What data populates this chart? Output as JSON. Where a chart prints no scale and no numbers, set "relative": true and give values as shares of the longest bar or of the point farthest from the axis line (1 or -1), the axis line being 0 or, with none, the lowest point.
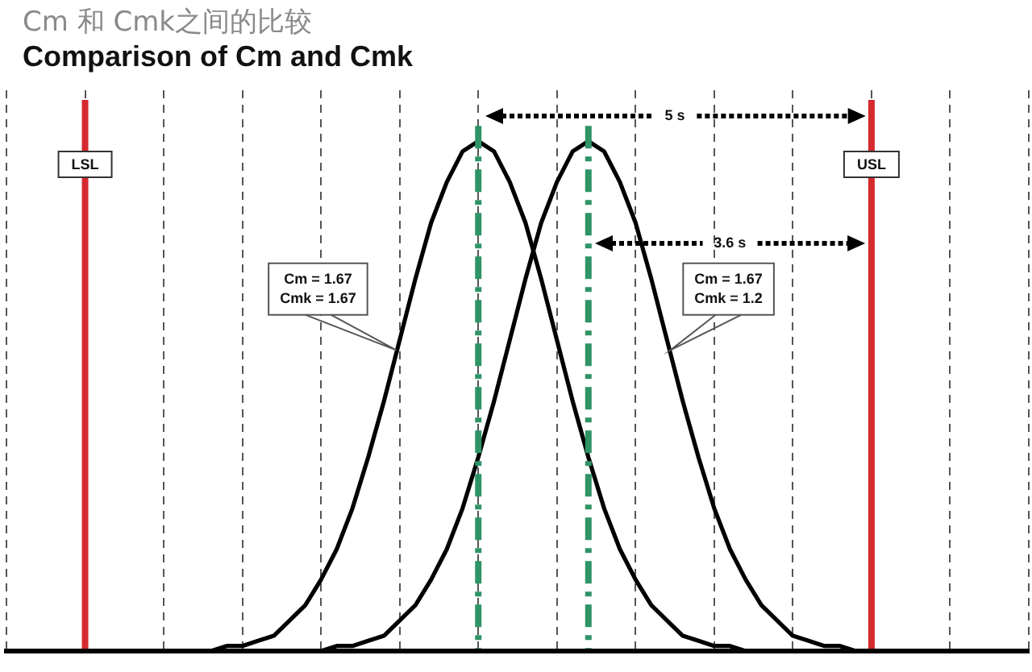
{
  "chart_data": {
    "type": "line",
    "title": "Cm 和 Cmk之间的比较",
    "subtitle": "Comparison of Cm and Cmk",
    "relative": true,
    "categories": [
      null,
      null,
      null,
      null,
      null,
      null,
      null,
      null,
      null,
      null,
      null,
      null,
      null,
      null,
      null,
      null,
      null,
      null,
      null,
      null,
      null,
      null,
      null,
      null,
      null,
      null,
      null,
      null,
      null,
      null,
      null,
      null,
      null,
      null,
      null,
      null,
      null,
      null,
      null,
      null,
      null,
      null,
      null,
      null,
      null,
      null,
      null,
      null,
      null,
      null,
      null,
      null,
      null,
      null,
      null,
      null,
      null,
      null,
      null,
      null,
      null,
      null,
      null,
      null,
      null,
      null
    ],
    "series": [
      {
        "color": "#000000",
        "values": [
          0,
          0,
          0,
          0,
          0,
          0,
          0,
          0,
          0,
          0,
          0,
          0,
          0,
          0,
          0.01,
          0.01,
          0.02,
          0.03,
          0.06,
          0.09,
          0.14,
          0.2,
          0.28,
          0.38,
          0.49,
          0.61,
          0.73,
          0.84,
          0.92,
          0.98,
          1,
          0.98,
          0.92,
          0.84,
          0.73,
          0.61,
          0.49,
          0.38,
          0.28,
          0.2,
          0.14,
          0.09,
          0.06,
          0.03,
          0.02,
          0.01,
          0.01,
          0,
          0,
          0,
          0,
          0,
          0,
          0,
          0,
          0,
          0,
          0,
          0,
          0,
          0,
          0,
          0,
          0,
          0,
          0
        ]
      },
      {
        "color": "#000000",
        "values": [
          0,
          0,
          0,
          0,
          0,
          0,
          0,
          0,
          0,
          0,
          0,
          0,
          0,
          0,
          0,
          0,
          0,
          0,
          0,
          0,
          0,
          0.01,
          0.01,
          0.02,
          0.03,
          0.06,
          0.09,
          0.14,
          0.2,
          0.28,
          0.38,
          0.49,
          0.61,
          0.73,
          0.84,
          0.92,
          0.98,
          1,
          0.98,
          0.92,
          0.84,
          0.73,
          0.61,
          0.49,
          0.38,
          0.28,
          0.2,
          0.14,
          0.09,
          0.06,
          0.03,
          0.02,
          0.01,
          0.01,
          0,
          0,
          0,
          0,
          0,
          0,
          0,
          0,
          0,
          0,
          0,
          0
        ]
      }
    ],
    "grid": "x",
    "legend": false,
    "marker": "none",
    "line_style": "solid",
    "annotations": [
      "LSL",
      "USL",
      "5 s",
      "3.6 s",
      "Cm = 1.67\nCmk = 1.67",
      "Cm = 1.67\nCmk = 1.2"
    ]
  }
}
